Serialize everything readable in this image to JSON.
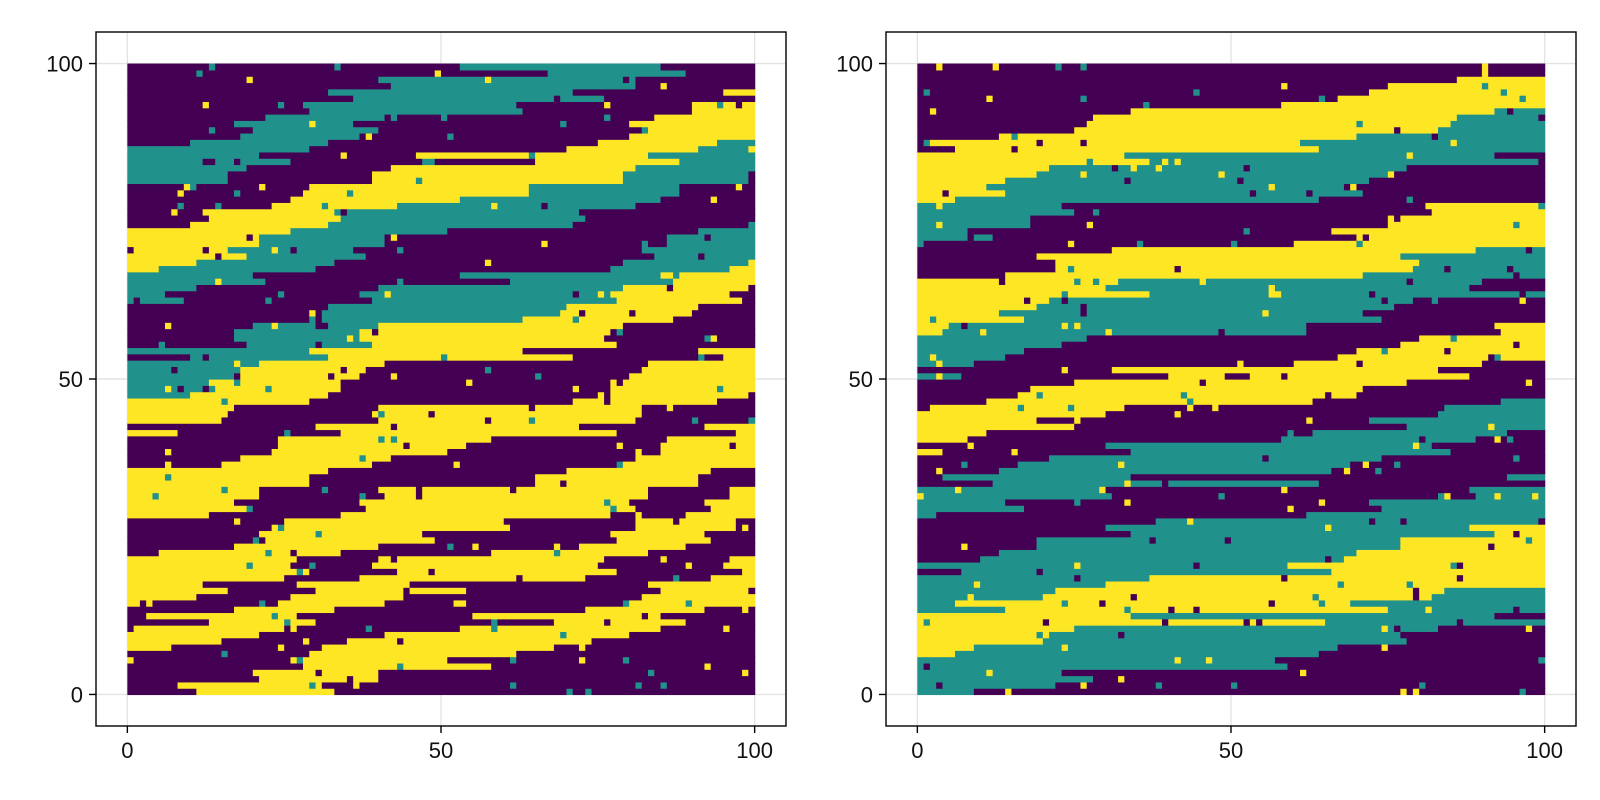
{
  "chart_data": [
    {
      "type": "heatmap",
      "title": "",
      "xlabel": "",
      "ylabel": "",
      "xlim": [
        -5,
        105
      ],
      "ylim": [
        -5,
        105
      ],
      "grid": true,
      "x_ticks": [
        0,
        50,
        100
      ],
      "y_ticks": [
        0,
        50,
        100
      ],
      "x_tick_labels": [
        "0",
        "50",
        "100"
      ],
      "y_tick_labels": [
        "0",
        "50",
        "100"
      ],
      "categories": [
        0,
        1,
        2
      ],
      "colors": [
        "#440154",
        "#21918c",
        "#fde725"
      ],
      "layers": [
        {
          "y": [
            0,
            4
          ],
          "value": 0
        },
        {
          "y": [
            4,
            10
          ],
          "value": 2
        },
        {
          "y": [
            10,
            16
          ],
          "value": 0
        },
        {
          "y": [
            16,
            21
          ],
          "value": 2
        },
        {
          "y": [
            21,
            25
          ],
          "value": 0
        },
        {
          "y": [
            25,
            32
          ],
          "value": 2
        },
        {
          "y": [
            32,
            38
          ],
          "value": 0
        },
        {
          "y": [
            38,
            45
          ],
          "value": 2
        },
        {
          "y": [
            45,
            52
          ],
          "value": 0
        },
        {
          "y": [
            52,
            58
          ],
          "value": 2
        },
        {
          "y": [
            58,
            64
          ],
          "value": 1
        },
        {
          "y": [
            64,
            72
          ],
          "value": 0
        },
        {
          "y": [
            72,
            78
          ],
          "value": 1
        },
        {
          "y": [
            78,
            84
          ],
          "value": 2
        },
        {
          "y": [
            84,
            91
          ],
          "value": 0
        },
        {
          "y": [
            91,
            97
          ],
          "value": 1
        },
        {
          "y": [
            97,
            100
          ],
          "value": 0
        }
      ],
      "dip_per_unit_x": 0.2
    },
    {
      "type": "heatmap",
      "title": "",
      "xlabel": "",
      "ylabel": "",
      "xlim": [
        -5,
        105
      ],
      "ylim": [
        -5,
        105
      ],
      "grid": true,
      "x_ticks": [
        0,
        50,
        100
      ],
      "y_ticks": [
        0,
        50,
        100
      ],
      "x_tick_labels": [
        "0",
        "50",
        "100"
      ],
      "y_tick_labels": [
        "0",
        "50",
        "100"
      ],
      "categories": [
        0,
        1,
        2
      ],
      "colors": [
        "#440154",
        "#21918c",
        "#fde725"
      ],
      "layers": [
        {
          "y": [
            0,
            5
          ],
          "value": 0
        },
        {
          "y": [
            5,
            12
          ],
          "value": 1
        },
        {
          "y": [
            12,
            20
          ],
          "value": 2
        },
        {
          "y": [
            20,
            27
          ],
          "value": 1
        },
        {
          "y": [
            27,
            34
          ],
          "value": 0
        },
        {
          "y": [
            34,
            40
          ],
          "value": 1
        },
        {
          "y": [
            40,
            46
          ],
          "value": 0
        },
        {
          "y": [
            46,
            52
          ],
          "value": 2
        },
        {
          "y": [
            52,
            58
          ],
          "value": 0
        },
        {
          "y": [
            58,
            65
          ],
          "value": 1
        },
        {
          "y": [
            65,
            72
          ],
          "value": 2
        },
        {
          "y": [
            72,
            79
          ],
          "value": 0
        },
        {
          "y": [
            79,
            86
          ],
          "value": 1
        },
        {
          "y": [
            86,
            93
          ],
          "value": 2
        },
        {
          "y": [
            93,
            100
          ],
          "value": 0
        }
      ],
      "dip_per_unit_x": 0.12
    }
  ]
}
